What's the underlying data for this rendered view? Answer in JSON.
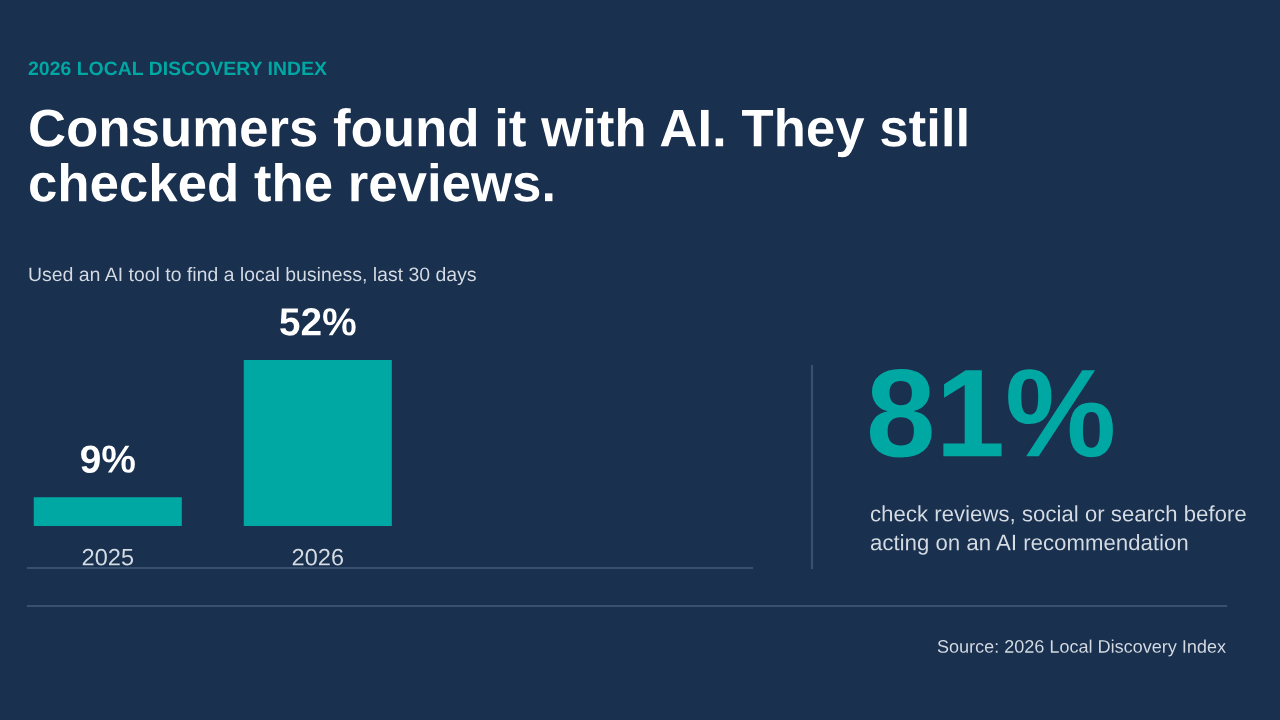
{
  "chart_data": [
    {
      "type": "bar",
      "title": "Consumers found it with AI. They still\nchecked the reviews.",
      "subtitle": "Used an AI tool to find a local business, last 30 days",
      "categories": [
        "2025",
        "2026"
      ],
      "values": [
        9,
        52
      ],
      "value_labels": [
        "9%",
        "52%"
      ],
      "color": "#00a8a3",
      "annotations": [
        "2026 LOCAL DISCOVERY INDEX",
        "Source: 2026 Local Discovery Index"
      ]
    },
    {
      "type": "other",
      "title": "81%",
      "subtitle": "check reviews, social or search before\nacting on an AI recommendation"
    }
  ]
}
